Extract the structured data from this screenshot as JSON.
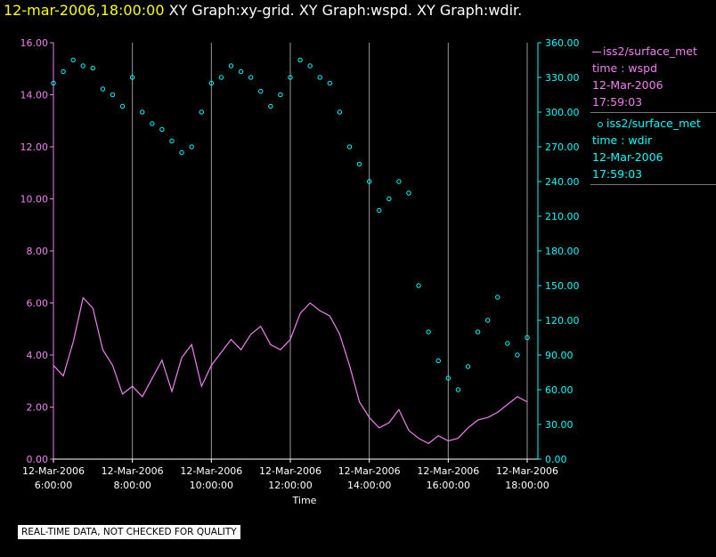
{
  "header": {
    "date_time": "12-mar-2006,18:00:00",
    "graphs": "XY Graph:xy-grid.  XY Graph:wspd.  XY Graph:wdir."
  },
  "legend": {
    "wspd": {
      "name": "iss2/surface_met",
      "var": "time : wspd",
      "date": "12-Mar-2006",
      "time": "17:59:03",
      "color": "#ee82ee"
    },
    "wdir": {
      "name": "iss2/surface_met",
      "var": "time : wdir",
      "date": "12-Mar-2006",
      "time": "17:59:03",
      "color": "#00ffff"
    }
  },
  "notice": "REAL-TIME DATA, NOT CHECKED FOR QUALITY",
  "chart_data": {
    "type": "line",
    "xlabel": "Time",
    "x_range": [
      "12-Mar-2006 06:00:00",
      "12-Mar-2006 18:00:00"
    ],
    "x_ticks": [
      {
        "date": "12-Mar-2006",
        "time": "6:00:00",
        "hour": 6
      },
      {
        "date": "12-Mar-2006",
        "time": "8:00:00",
        "hour": 8
      },
      {
        "date": "12-Mar-2006",
        "time": "10:00:00",
        "hour": 10
      },
      {
        "date": "12-Mar-2006",
        "time": "12:00:00",
        "hour": 12
      },
      {
        "date": "12-Mar-2006",
        "time": "14:00:00",
        "hour": 14
      },
      {
        "date": "12-Mar-2006",
        "time": "16:00:00",
        "hour": 16
      },
      {
        "date": "12-Mar-2006",
        "time": "18:00:00",
        "hour": 18
      }
    ],
    "y_left": {
      "range": [
        0,
        16
      ],
      "ticks": [
        "0.00",
        "2.00",
        "4.00",
        "6.00",
        "8.00",
        "10.00",
        "12.00",
        "14.00",
        "16.00"
      ],
      "color": "#ee82ee"
    },
    "y_right": {
      "range": [
        0,
        360
      ],
      "ticks": [
        "0.00",
        "30.00",
        "60.00",
        "90.00",
        "120.00",
        "150.00",
        "180.00",
        "210.00",
        "240.00",
        "270.00",
        "300.00",
        "330.00",
        "360.00"
      ],
      "color": "#00ffff"
    },
    "grid_hours": [
      8,
      10,
      12,
      14,
      16,
      18
    ],
    "series": [
      {
        "name": "wspd",
        "axis": "left",
        "style": "line",
        "hours": [
          6.0,
          6.25,
          6.5,
          6.75,
          7.0,
          7.25,
          7.5,
          7.75,
          8.0,
          8.25,
          8.5,
          8.75,
          9.0,
          9.25,
          9.5,
          9.75,
          10.0,
          10.25,
          10.5,
          10.75,
          11.0,
          11.25,
          11.5,
          11.75,
          12.0,
          12.25,
          12.5,
          12.75,
          13.0,
          13.25,
          13.5,
          13.75,
          14.0,
          14.25,
          14.5,
          14.75,
          15.0,
          15.25,
          15.5,
          15.75,
          16.0,
          16.25,
          16.5,
          16.75,
          17.0,
          17.25,
          17.5,
          17.75,
          18.0
        ],
        "values": [
          3.6,
          3.2,
          4.5,
          6.2,
          5.8,
          4.2,
          3.6,
          2.5,
          2.8,
          2.4,
          3.1,
          3.8,
          2.6,
          3.9,
          4.4,
          2.8,
          3.6,
          4.1,
          4.6,
          4.2,
          4.8,
          5.1,
          4.4,
          4.2,
          4.6,
          5.6,
          6.0,
          5.7,
          5.5,
          4.8,
          3.6,
          2.2,
          1.6,
          1.2,
          1.4,
          1.9,
          1.1,
          0.8,
          0.6,
          0.9,
          0.7,
          0.8,
          1.2,
          1.5,
          1.6,
          1.8,
          2.1,
          2.4,
          2.2
        ]
      },
      {
        "name": "wdir",
        "axis": "right",
        "style": "points",
        "hours": [
          6.0,
          6.25,
          6.5,
          6.75,
          7.0,
          7.25,
          7.5,
          7.75,
          8.0,
          8.25,
          8.5,
          8.75,
          9.0,
          9.25,
          9.5,
          9.75,
          10.0,
          10.25,
          10.5,
          10.75,
          11.0,
          11.25,
          11.5,
          11.75,
          12.0,
          12.25,
          12.5,
          12.75,
          13.0,
          13.25,
          13.5,
          13.75,
          14.0,
          14.25,
          14.5,
          14.75,
          15.0,
          15.25,
          15.5,
          15.75,
          16.0,
          16.25,
          16.5,
          16.75,
          17.0,
          17.25,
          17.5,
          17.75,
          18.0
        ],
        "values": [
          325,
          335,
          345,
          340,
          338,
          320,
          315,
          305,
          330,
          300,
          290,
          285,
          275,
          265,
          270,
          300,
          325,
          330,
          340,
          335,
          330,
          318,
          305,
          315,
          330,
          345,
          340,
          330,
          325,
          300,
          270,
          255,
          240,
          215,
          225,
          240,
          230,
          150,
          110,
          85,
          70,
          60,
          80,
          110,
          120,
          140,
          100,
          90,
          105
        ]
      }
    ]
  }
}
